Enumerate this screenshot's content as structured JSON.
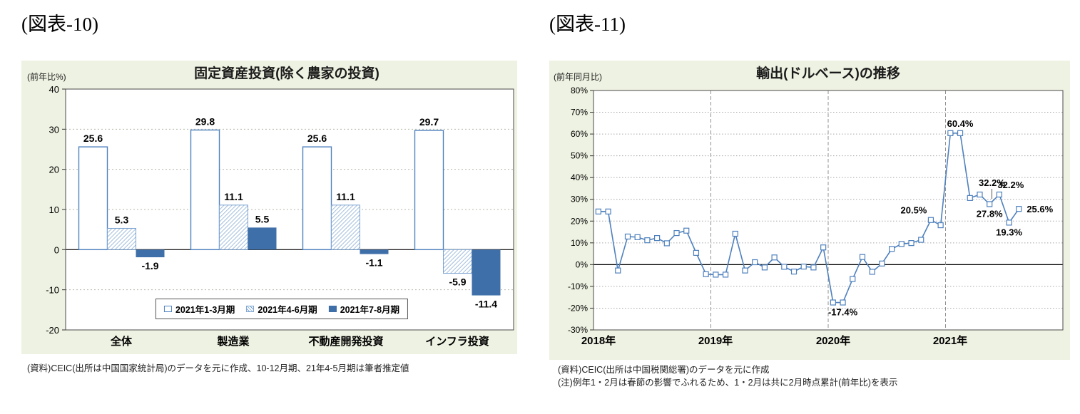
{
  "figure_left": {
    "header": "(図表-10)",
    "source": "(資料)CEIC(出所は中国国家統計局)のデータを元に作成、10-12月期、21年4-5月期は筆者推定値"
  },
  "figure_right": {
    "header": "(図表-11)",
    "sources": [
      "(資料)CEIC(出所は中国税関総署)のデータを元に作成",
      "(注)例年1・2月は春節の影響でふれるため、1・2月は共に2月時点累計(前年比)を表示"
    ]
  },
  "colors": {
    "panel_bg": "#eef2e2",
    "bar_outline": "#4f81bd",
    "bar_hatch": "#7ba3d0",
    "bar_solid": "#3f6fa8",
    "line": "#4f81bd",
    "grid": "#b5b9a9",
    "year_grid": "#909090",
    "zero_line": "#000000"
  },
  "chart_data": [
    {
      "type": "bar",
      "title": "固定資産投資(除く農家の投資)",
      "ylabel": "(前年比%)",
      "ylim": [
        -20,
        40
      ],
      "ytick_step": 10,
      "ytick_labels": [
        "40",
        "30",
        "20",
        "10",
        "0",
        "-10",
        "-20"
      ],
      "categories": [
        "全体",
        "製造業",
        "不動産開発投資",
        "インフラ投資"
      ],
      "series": [
        {
          "name": "2021年1-3月期",
          "style": "outline",
          "values": [
            25.6,
            29.8,
            25.6,
            29.7
          ]
        },
        {
          "name": "2021年4-6月期",
          "style": "hatch",
          "values": [
            5.3,
            11.1,
            11.1,
            -5.9
          ]
        },
        {
          "name": "2021年7-8月期",
          "style": "solid",
          "values": [
            -1.9,
            5.5,
            -1.1,
            -11.4
          ]
        }
      ],
      "legend_position": "bottom-inside",
      "grid": "dotted-horizontal"
    },
    {
      "type": "line",
      "title": "輸出(ドルベース)の推移",
      "ylabel": "(前年同月比)",
      "ylim": [
        -30,
        80
      ],
      "ytick_step": 10,
      "ytick_labels": [
        "80%",
        "70%",
        "60%",
        "50%",
        "40%",
        "30%",
        "20%",
        "10%",
        "0%",
        "-10%",
        "-20%",
        "-30%"
      ],
      "x_years": [
        "2018年",
        "2019年",
        "2020年",
        "2021年"
      ],
      "months_per_year": 12,
      "values": [
        24.4,
        24.4,
        -2.7,
        12.9,
        12.6,
        11.2,
        12.2,
        9.8,
        14.5,
        15.6,
        5.4,
        -4.4,
        -4.6,
        -4.6,
        14.2,
        -2.7,
        1.1,
        -1.3,
        3.3,
        -1.0,
        -3.2,
        -0.9,
        -1.3,
        7.9,
        -17.4,
        -17.4,
        -6.6,
        3.5,
        -3.3,
        0.5,
        7.2,
        9.5,
        9.9,
        11.4,
        20.5,
        18.1,
        60.4,
        60.4,
        30.6,
        32.2,
        27.8,
        32.2,
        19.3,
        25.6
      ],
      "annotations": [
        {
          "i": 25,
          "text": "-17.4%",
          "pos": "below"
        },
        {
          "i": 34,
          "text": "20.5%",
          "pos": "above-left"
        },
        {
          "i": 37,
          "text": "60.4%",
          "pos": "above"
        },
        {
          "i": 39,
          "text": "32.2%",
          "pos": "above-leader"
        },
        {
          "i": 40,
          "text": "27.8%",
          "pos": "below"
        },
        {
          "i": 41,
          "text": "32.2%",
          "pos": "above-right"
        },
        {
          "i": 42,
          "text": "19.3%",
          "pos": "below"
        },
        {
          "i": 43,
          "text": "25.6%",
          "pos": "right"
        }
      ],
      "grid": "dotted-horizontal, dashed-vertical-year-boundaries"
    }
  ]
}
